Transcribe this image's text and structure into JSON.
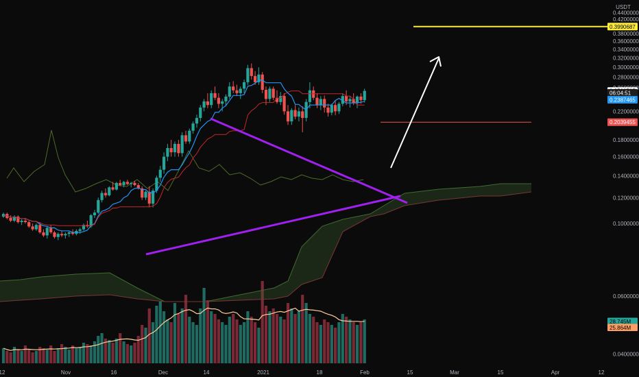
{
  "chart_data": {
    "type": "line",
    "symbol_currency": "USDT",
    "y_axis": {
      "scale": "log",
      "ticks": [
        "0.4400000",
        "0.4200000",
        "0.3800000",
        "0.3600000",
        "0.3400000",
        "0.3200000",
        "0.3000000",
        "0.2800000",
        "0.2600000",
        "0.2200000",
        "0.1800000",
        "0.1600000",
        "0.1400000",
        "0.1200000",
        "0.1000000",
        "0.0600000",
        "0.0400000"
      ],
      "tick_values": [
        0.44,
        0.42,
        0.38,
        0.36,
        0.34,
        0.32,
        0.3,
        0.28,
        0.26,
        0.22,
        0.18,
        0.16,
        0.14,
        0.12,
        0.1,
        0.06,
        0.04
      ]
    },
    "x_axis": {
      "ticks": [
        "12",
        "Nov",
        "16",
        "Dec",
        "14",
        "2021",
        "18",
        "Feb",
        "15",
        "Mar",
        "15",
        "Apr",
        "12"
      ]
    },
    "price_labels": [
      {
        "text": "0.3990687",
        "value": 0.3990687,
        "color": "#ffeb3b"
      },
      {
        "text": "0.2538737",
        "value": 0.2538737,
        "color": "#ffffff"
      },
      {
        "text": "06:04:51",
        "value": 0.2505,
        "color": "#ffffff"
      },
      {
        "text": "0.2387465",
        "value": 0.2387465,
        "color": "#2196f3"
      },
      {
        "text": "0.2039455",
        "value": 0.2039455,
        "color": "#ef5350"
      }
    ],
    "volume_labels": [
      {
        "text": "28.745M",
        "color": "#26a69a"
      },
      {
        "text": "25.864M",
        "color": "#ff9e63"
      }
    ],
    "candles": [
      [
        0.105,
        0.108,
        0.104,
        0.107
      ],
      [
        0.107,
        0.108,
        0.103,
        0.104
      ],
      [
        0.104,
        0.106,
        0.101,
        0.102
      ],
      [
        0.102,
        0.106,
        0.101,
        0.105
      ],
      [
        0.105,
        0.106,
        0.1,
        0.101
      ],
      [
        0.101,
        0.103,
        0.099,
        0.102
      ],
      [
        0.102,
        0.104,
        0.1,
        0.101
      ],
      [
        0.101,
        0.102,
        0.097,
        0.098
      ],
      [
        0.098,
        0.1,
        0.095,
        0.096
      ],
      [
        0.096,
        0.1,
        0.095,
        0.099
      ],
      [
        0.099,
        0.101,
        0.093,
        0.094
      ],
      [
        0.094,
        0.096,
        0.091,
        0.092
      ],
      [
        0.092,
        0.098,
        0.09,
        0.097
      ],
      [
        0.097,
        0.099,
        0.093,
        0.094
      ],
      [
        0.094,
        0.095,
        0.09,
        0.091
      ],
      [
        0.091,
        0.094,
        0.089,
        0.093
      ],
      [
        0.093,
        0.095,
        0.091,
        0.092
      ],
      [
        0.092,
        0.094,
        0.09,
        0.093
      ],
      [
        0.093,
        0.095,
        0.091,
        0.094
      ],
      [
        0.094,
        0.096,
        0.092,
        0.093
      ],
      [
        0.093,
        0.096,
        0.092,
        0.095
      ],
      [
        0.095,
        0.097,
        0.093,
        0.096
      ],
      [
        0.096,
        0.1,
        0.095,
        0.099
      ],
      [
        0.099,
        0.102,
        0.097,
        0.098
      ],
      [
        0.098,
        0.107,
        0.097,
        0.106
      ],
      [
        0.106,
        0.11,
        0.104,
        0.108
      ],
      [
        0.108,
        0.12,
        0.107,
        0.118
      ],
      [
        0.118,
        0.126,
        0.116,
        0.124
      ],
      [
        0.124,
        0.128,
        0.12,
        0.122
      ],
      [
        0.122,
        0.13,
        0.121,
        0.129
      ],
      [
        0.129,
        0.134,
        0.126,
        0.127
      ],
      [
        0.127,
        0.134,
        0.126,
        0.133
      ],
      [
        0.133,
        0.136,
        0.13,
        0.131
      ],
      [
        0.131,
        0.135,
        0.129,
        0.134
      ],
      [
        0.134,
        0.136,
        0.131,
        0.132
      ],
      [
        0.132,
        0.134,
        0.129,
        0.133
      ],
      [
        0.133,
        0.135,
        0.13,
        0.131
      ],
      [
        0.131,
        0.133,
        0.127,
        0.128
      ],
      [
        0.128,
        0.13,
        0.118,
        0.12
      ],
      [
        0.12,
        0.126,
        0.118,
        0.125
      ],
      [
        0.125,
        0.13,
        0.112,
        0.115
      ],
      [
        0.115,
        0.128,
        0.112,
        0.126
      ],
      [
        0.126,
        0.14,
        0.124,
        0.138
      ],
      [
        0.138,
        0.15,
        0.134,
        0.146
      ],
      [
        0.146,
        0.165,
        0.142,
        0.16
      ],
      [
        0.16,
        0.175,
        0.155,
        0.17
      ],
      [
        0.17,
        0.18,
        0.16,
        0.165
      ],
      [
        0.165,
        0.178,
        0.16,
        0.175
      ],
      [
        0.175,
        0.18,
        0.16,
        0.164
      ],
      [
        0.164,
        0.19,
        0.16,
        0.186
      ],
      [
        0.186,
        0.192,
        0.175,
        0.178
      ],
      [
        0.178,
        0.195,
        0.175,
        0.192
      ],
      [
        0.192,
        0.205,
        0.188,
        0.202
      ],
      [
        0.202,
        0.215,
        0.196,
        0.21
      ],
      [
        0.21,
        0.23,
        0.205,
        0.226
      ],
      [
        0.226,
        0.24,
        0.22,
        0.236
      ],
      [
        0.236,
        0.25,
        0.225,
        0.23
      ],
      [
        0.23,
        0.255,
        0.225,
        0.25
      ],
      [
        0.25,
        0.262,
        0.238,
        0.242
      ],
      [
        0.242,
        0.25,
        0.225,
        0.232
      ],
      [
        0.232,
        0.24,
        0.22,
        0.236
      ],
      [
        0.236,
        0.248,
        0.228,
        0.244
      ],
      [
        0.244,
        0.27,
        0.24,
        0.262
      ],
      [
        0.262,
        0.272,
        0.25,
        0.255
      ],
      [
        0.255,
        0.265,
        0.245,
        0.25
      ],
      [
        0.25,
        0.262,
        0.24,
        0.258
      ],
      [
        0.258,
        0.275,
        0.25,
        0.27
      ],
      [
        0.27,
        0.305,
        0.265,
        0.298
      ],
      [
        0.298,
        0.308,
        0.275,
        0.282
      ],
      [
        0.282,
        0.292,
        0.265,
        0.27
      ],
      [
        0.27,
        0.3,
        0.265,
        0.285
      ],
      [
        0.285,
        0.29,
        0.25,
        0.256
      ],
      [
        0.256,
        0.262,
        0.23,
        0.24
      ],
      [
        0.24,
        0.262,
        0.235,
        0.258
      ],
      [
        0.258,
        0.262,
        0.238,
        0.242
      ],
      [
        0.242,
        0.255,
        0.232,
        0.235
      ],
      [
        0.235,
        0.252,
        0.23,
        0.245
      ],
      [
        0.245,
        0.25,
        0.215,
        0.22
      ],
      [
        0.22,
        0.23,
        0.2,
        0.205
      ],
      [
        0.205,
        0.225,
        0.2,
        0.222
      ],
      [
        0.222,
        0.23,
        0.208,
        0.212
      ],
      [
        0.212,
        0.226,
        0.205,
        0.22
      ],
      [
        0.22,
        0.228,
        0.19,
        0.21
      ],
      [
        0.21,
        0.24,
        0.205,
        0.235
      ],
      [
        0.235,
        0.27,
        0.225,
        0.255
      ],
      [
        0.255,
        0.262,
        0.238,
        0.242
      ],
      [
        0.242,
        0.25,
        0.225,
        0.23
      ],
      [
        0.23,
        0.245,
        0.222,
        0.24
      ],
      [
        0.24,
        0.246,
        0.218,
        0.226
      ],
      [
        0.226,
        0.232,
        0.212,
        0.218
      ],
      [
        0.218,
        0.232,
        0.214,
        0.23
      ],
      [
        0.23,
        0.238,
        0.214,
        0.22
      ],
      [
        0.22,
        0.235,
        0.216,
        0.232
      ],
      [
        0.232,
        0.25,
        0.228,
        0.245
      ],
      [
        0.245,
        0.255,
        0.23,
        0.236
      ],
      [
        0.236,
        0.245,
        0.226,
        0.24
      ],
      [
        0.24,
        0.25,
        0.23,
        0.234
      ],
      [
        0.234,
        0.246,
        0.225,
        0.244
      ],
      [
        0.244,
        0.25,
        0.232,
        0.238
      ],
      [
        0.238,
        0.258,
        0.234,
        0.254
      ]
    ],
    "volumes": [
      11,
      9,
      8,
      12,
      10,
      9,
      13,
      10,
      8,
      9,
      12,
      11,
      10,
      13,
      9,
      11,
      14,
      12,
      10,
      13,
      11,
      12,
      15,
      14,
      13,
      16,
      20,
      22,
      18,
      17,
      15,
      18,
      22,
      16,
      14,
      13,
      15,
      20,
      28,
      26,
      40,
      30,
      42,
      45,
      38,
      32,
      30,
      44,
      36,
      40,
      50,
      34,
      30,
      28,
      40,
      55,
      46,
      38,
      36,
      32,
      30,
      28,
      34,
      36,
      32,
      28,
      30,
      38,
      34,
      30,
      26,
      60,
      42,
      38,
      40,
      36,
      34,
      32,
      44,
      40,
      36,
      38,
      50,
      44,
      36,
      34,
      30,
      28,
      32,
      30,
      28,
      26,
      30,
      36,
      34,
      32,
      30,
      28,
      30,
      32
    ]
  }
}
